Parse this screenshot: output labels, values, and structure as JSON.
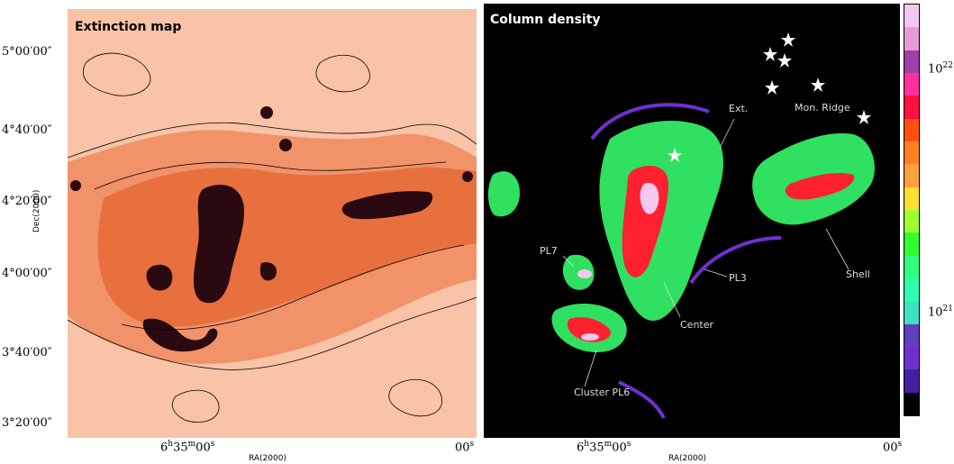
{
  "left_panel": {
    "title": "Extinction map",
    "y_ticks": [
      "5°00′00″",
      "4°40′00″",
      "4°20′00″",
      "4°00′00″",
      "3°40′00″",
      "3°20′00″"
    ],
    "y_label": "Dec(2000)",
    "x_tick_main": "6",
    "x_tick_h": "h",
    "x_tick_mid": "35",
    "x_tick_m": "m",
    "x_tick_sec": "00",
    "x_tick_s": "s",
    "x_tick_right": "00",
    "x_tick_right_s": "s",
    "x_label": "RA(2000)"
  },
  "right_panel": {
    "title": "Column density",
    "annotations": {
      "ext": "Ext.",
      "mon_ridge": "Mon. Ridge",
      "shell": "Shell",
      "pl7": "PL7",
      "pl3": "PL3",
      "center": "Center",
      "cluster": "Cluster PL6"
    },
    "x_tick_main": "6",
    "x_tick_h": "h",
    "x_tick_mid": "35",
    "x_tick_m": "m",
    "x_tick_sec": "00",
    "x_tick_s": "s",
    "x_tick_right": "00",
    "x_tick_right_s": "s",
    "x_label": "RA(2000)"
  },
  "colorbar": {
    "label_upper_base": "10",
    "label_upper_exp": "22",
    "label_lower_base": "10",
    "label_lower_exp": "21",
    "colors": [
      "#f4c6ee",
      "#e89ad8",
      "#a040a8",
      "#ff30a0",
      "#ff1040",
      "#ff5010",
      "#ff8020",
      "#ffa040",
      "#ffe030",
      "#a0ff30",
      "#30ff30",
      "#30ff80",
      "#30ffb0",
      "#40e0c0",
      "#6040c0",
      "#7030d0",
      "#4020a0",
      "#000000"
    ]
  },
  "stars_color": "#ffffff"
}
